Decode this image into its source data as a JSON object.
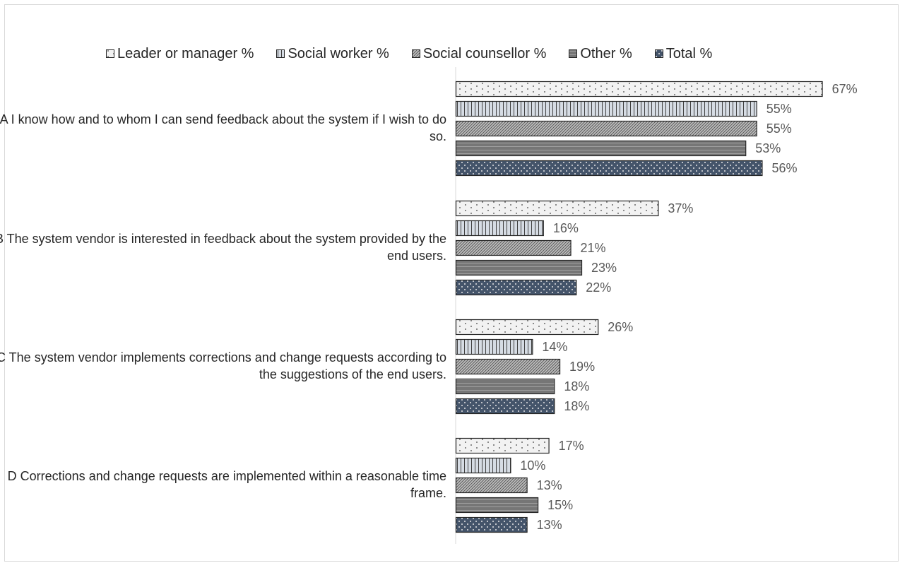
{
  "chart_data": {
    "type": "bar",
    "orientation": "horizontal",
    "legend_position": "top",
    "grid": false,
    "xlim": [
      0,
      100
    ],
    "categories": [
      "A I know how and to whom I can send feedback about the system if I wish to do so.",
      "B The system vendor is interested in feedback about the system provided by the end users.",
      "C The system vendor implements corrections and change requests according to the suggestions of the end users.",
      "D Corrections and change requests are implemented within a reasonable time frame."
    ],
    "series": [
      {
        "name": "Leader or manager %",
        "values": [
          67,
          37,
          26,
          17
        ],
        "labels": [
          "67%",
          "37%",
          "26%",
          "17%"
        ],
        "color": "#f2f2f2",
        "pattern": "dots-light"
      },
      {
        "name": "Social worker %",
        "values": [
          55,
          16,
          14,
          10
        ],
        "labels": [
          "55%",
          "16%",
          "14%",
          "10%"
        ],
        "color": "#d6dce4",
        "pattern": "vertical-lines"
      },
      {
        "name": "Social counsellor %",
        "values": [
          55,
          21,
          19,
          13
        ],
        "labels": [
          "55%",
          "21%",
          "19%",
          "13%"
        ],
        "color": "#a6a6a6",
        "pattern": "diagonal-lines"
      },
      {
        "name": "Other %",
        "values": [
          53,
          23,
          18,
          15
        ],
        "labels": [
          "53%",
          "23%",
          "18%",
          "15%"
        ],
        "color": "#7f7f7f",
        "pattern": "horizontal-lines"
      },
      {
        "name": "Total %",
        "values": [
          56,
          22,
          18,
          13
        ],
        "labels": [
          "56%",
          "22%",
          "18%",
          "13%"
        ],
        "color": "#44546a",
        "pattern": "dots-dark"
      }
    ]
  }
}
